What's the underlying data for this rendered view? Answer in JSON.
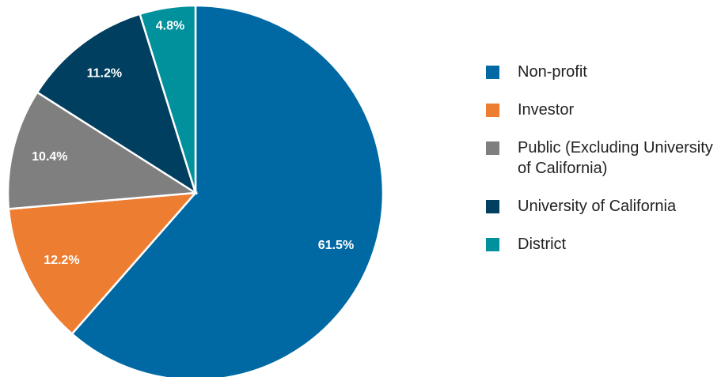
{
  "chart_data": {
    "type": "pie",
    "categories": [
      "Non-profit",
      "Investor",
      "Public (Excluding University of California)",
      "University of California",
      "District"
    ],
    "values": [
      61.5,
      12.2,
      10.4,
      11.2,
      4.8
    ],
    "value_labels": [
      "61.5%",
      "12.2%",
      "10.4%",
      "11.2%",
      "4.8%"
    ],
    "colors": [
      "#0069a4",
      "#ed7d31",
      "#7f7f7f",
      "#003f5f",
      "#00919c"
    ],
    "legend": "right"
  }
}
